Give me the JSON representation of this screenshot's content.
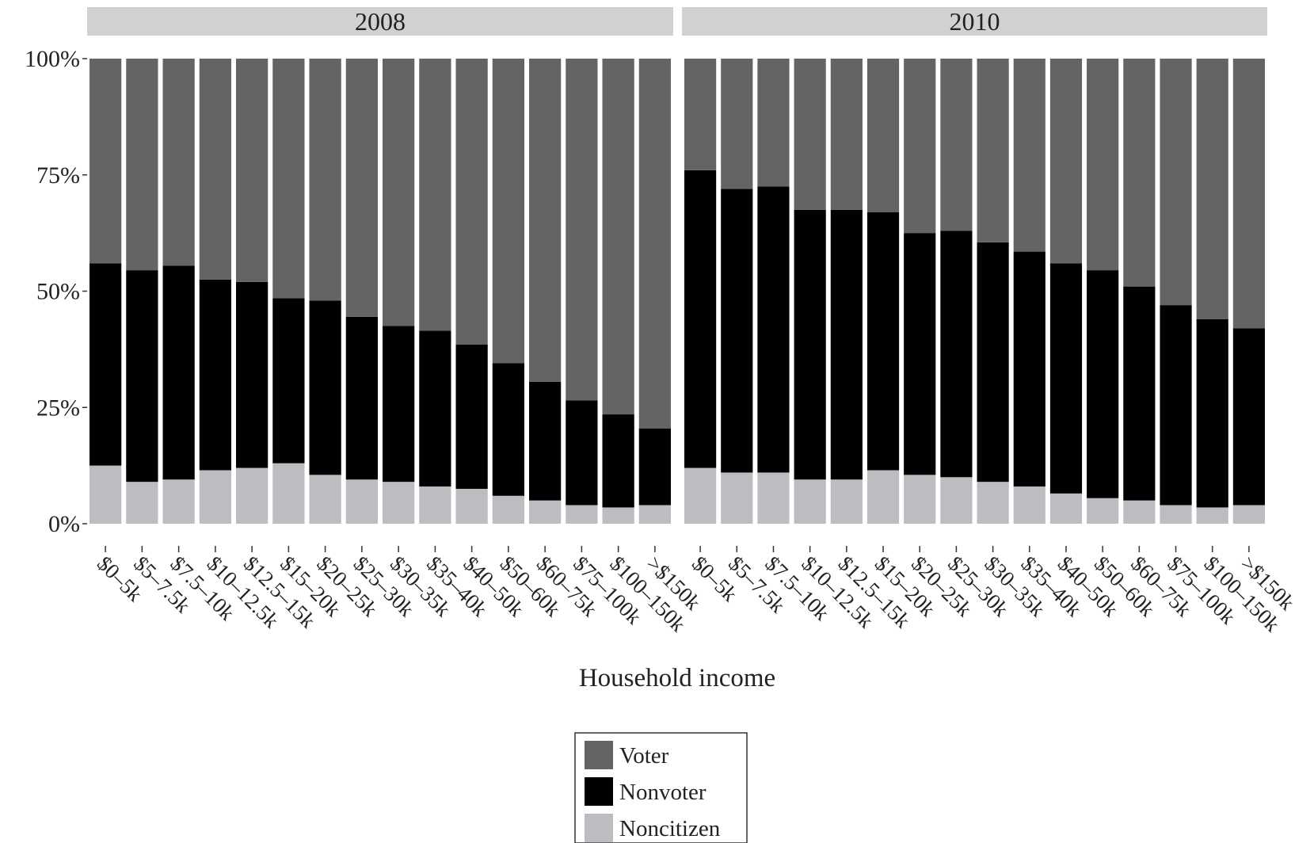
{
  "chart_data": {
    "type": "bar",
    "stacked": true,
    "normalized": true,
    "xlabel": "Household income",
    "ylabel": "",
    "ylim": [
      0,
      100
    ],
    "yticks": [
      "0%",
      "25%",
      "50%",
      "75%",
      "100%"
    ],
    "grid": false,
    "legend_placement": "bottom",
    "categories": [
      "$0–5k",
      "$5–7.5k",
      "$7.5–10k",
      "$10–12.5k",
      "$12.5–15k",
      "$15–20k",
      "$20–25k",
      "$25–30k",
      "$30–35k",
      "$35–40k",
      "$40–50k",
      "$50–60k",
      "$60–75k",
      "$75–100k",
      "$100–150k",
      ">$150k"
    ],
    "colors": {
      "Voter": "#636466",
      "Nonvoter": "#000000",
      "Noncitizen": "#bcbdc0"
    },
    "legend": [
      "Voter",
      "Nonvoter",
      "Noncitizen"
    ],
    "panels": [
      {
        "label": "2008",
        "series": [
          {
            "name": "Noncitizen",
            "values": [
              12.5,
              9.0,
              9.5,
              11.5,
              12.0,
              13.0,
              10.5,
              9.5,
              9.0,
              8.0,
              7.5,
              6.0,
              5.0,
              4.0,
              3.5,
              4.0
            ]
          },
          {
            "name": "Nonvoter",
            "values": [
              43.5,
              45.5,
              46.0,
              41.0,
              40.0,
              35.5,
              37.5,
              35.0,
              33.5,
              33.5,
              31.0,
              28.5,
              25.5,
              22.5,
              20.0,
              16.5
            ]
          },
          {
            "name": "Voter",
            "values": [
              44.0,
              45.5,
              44.5,
              47.5,
              48.0,
              51.5,
              52.0,
              55.5,
              57.5,
              58.5,
              61.5,
              65.5,
              69.5,
              73.5,
              76.5,
              79.5
            ]
          }
        ]
      },
      {
        "label": "2010",
        "series": [
          {
            "name": "Noncitizen",
            "values": [
              12.0,
              11.0,
              11.0,
              9.5,
              9.5,
              11.5,
              10.5,
              10.0,
              9.0,
              8.0,
              6.5,
              5.5,
              5.0,
              4.0,
              3.5,
              4.0
            ]
          },
          {
            "name": "Nonvoter",
            "values": [
              64.0,
              61.0,
              61.5,
              58.0,
              58.0,
              55.5,
              52.0,
              53.0,
              51.5,
              50.5,
              49.5,
              49.0,
              46.0,
              43.0,
              40.5,
              38.0
            ]
          },
          {
            "name": "Voter",
            "values": [
              24.0,
              28.0,
              27.5,
              32.5,
              32.5,
              33.0,
              37.5,
              37.0,
              39.5,
              41.5,
              44.0,
              45.5,
              49.0,
              53.0,
              56.0,
              58.0
            ]
          }
        ]
      }
    ]
  }
}
